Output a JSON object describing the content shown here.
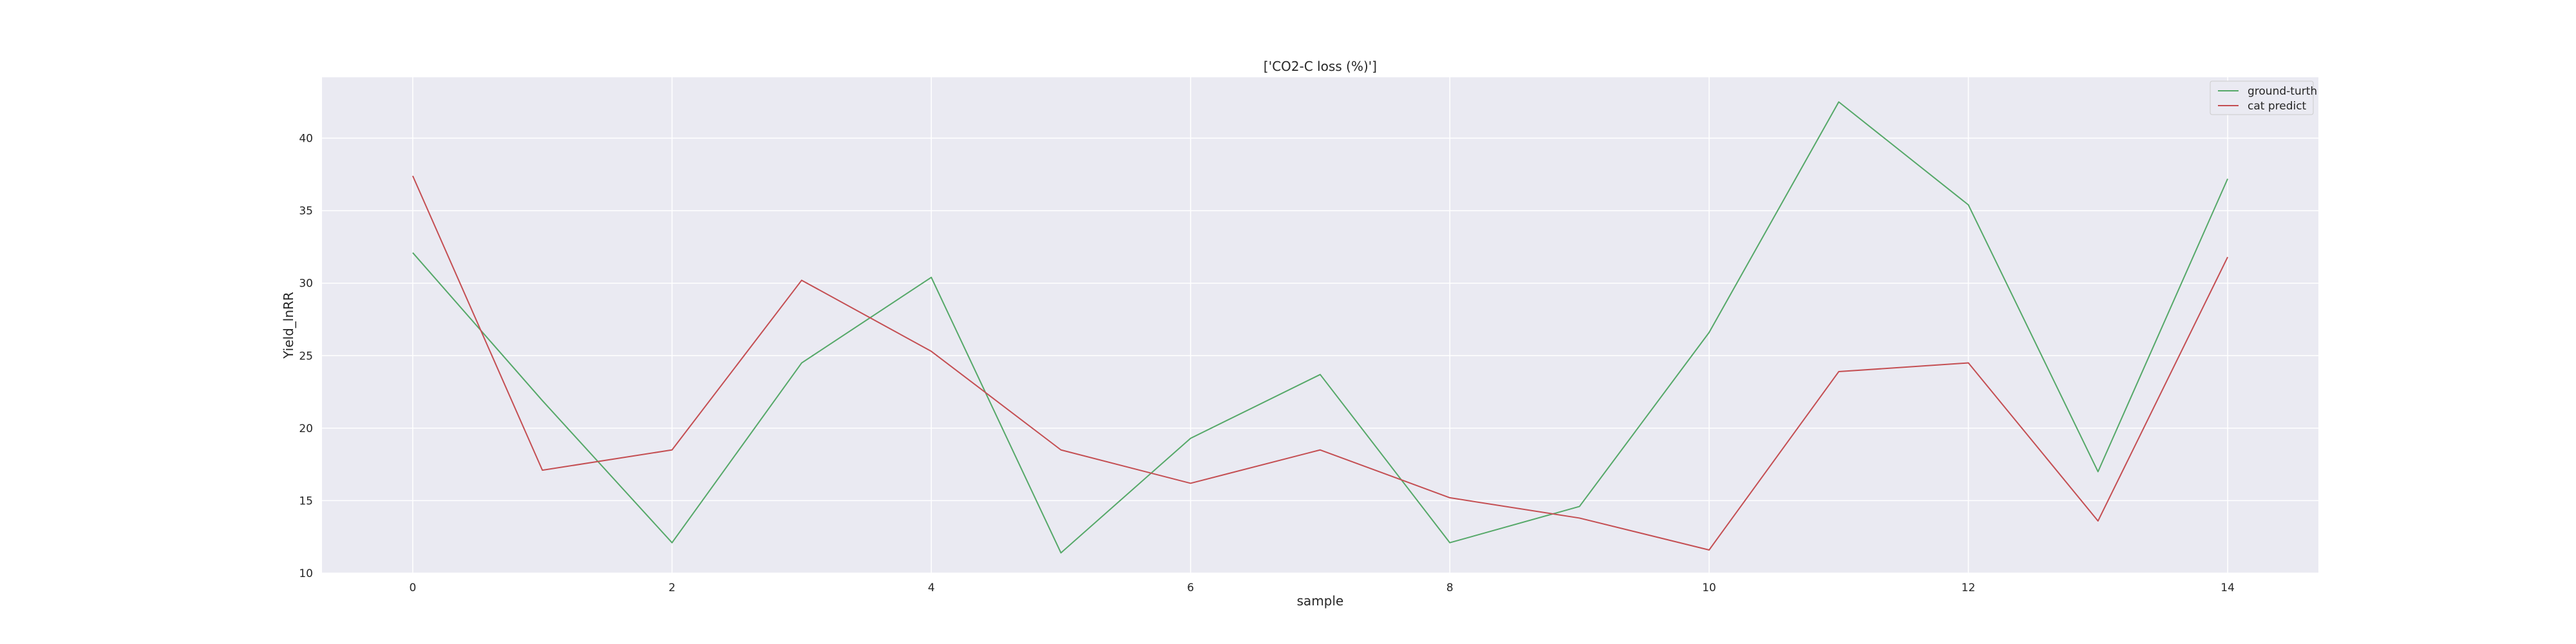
{
  "chart_data": {
    "type": "line",
    "title": "['CO2-C loss (%)']",
    "xlabel": "sample",
    "ylabel": "Yield_lnRR",
    "x": [
      0,
      1,
      2,
      3,
      4,
      5,
      6,
      7,
      8,
      9,
      10,
      11,
      12,
      13,
      14
    ],
    "xlim": [
      -0.7,
      14.7
    ],
    "ylim": [
      10,
      44.2
    ],
    "xticks": [
      0,
      2,
      4,
      6,
      8,
      10,
      12,
      14
    ],
    "yticks": [
      10,
      15,
      20,
      25,
      30,
      35,
      40
    ],
    "grid": true,
    "legend_position": "top-right",
    "series": [
      {
        "name": "ground-turth",
        "color": "#55a868",
        "values": [
          32.1,
          21.9,
          12.1,
          24.5,
          30.4,
          11.4,
          19.3,
          23.7,
          12.1,
          14.6,
          26.6,
          42.5,
          35.4,
          17.0,
          37.2
        ]
      },
      {
        "name": "cat predict",
        "color": "#c44e52",
        "values": [
          37.4,
          17.1,
          18.5,
          30.2,
          25.3,
          18.5,
          16.2,
          18.5,
          15.2,
          13.8,
          11.6,
          23.9,
          24.5,
          13.6,
          31.8
        ]
      }
    ]
  }
}
